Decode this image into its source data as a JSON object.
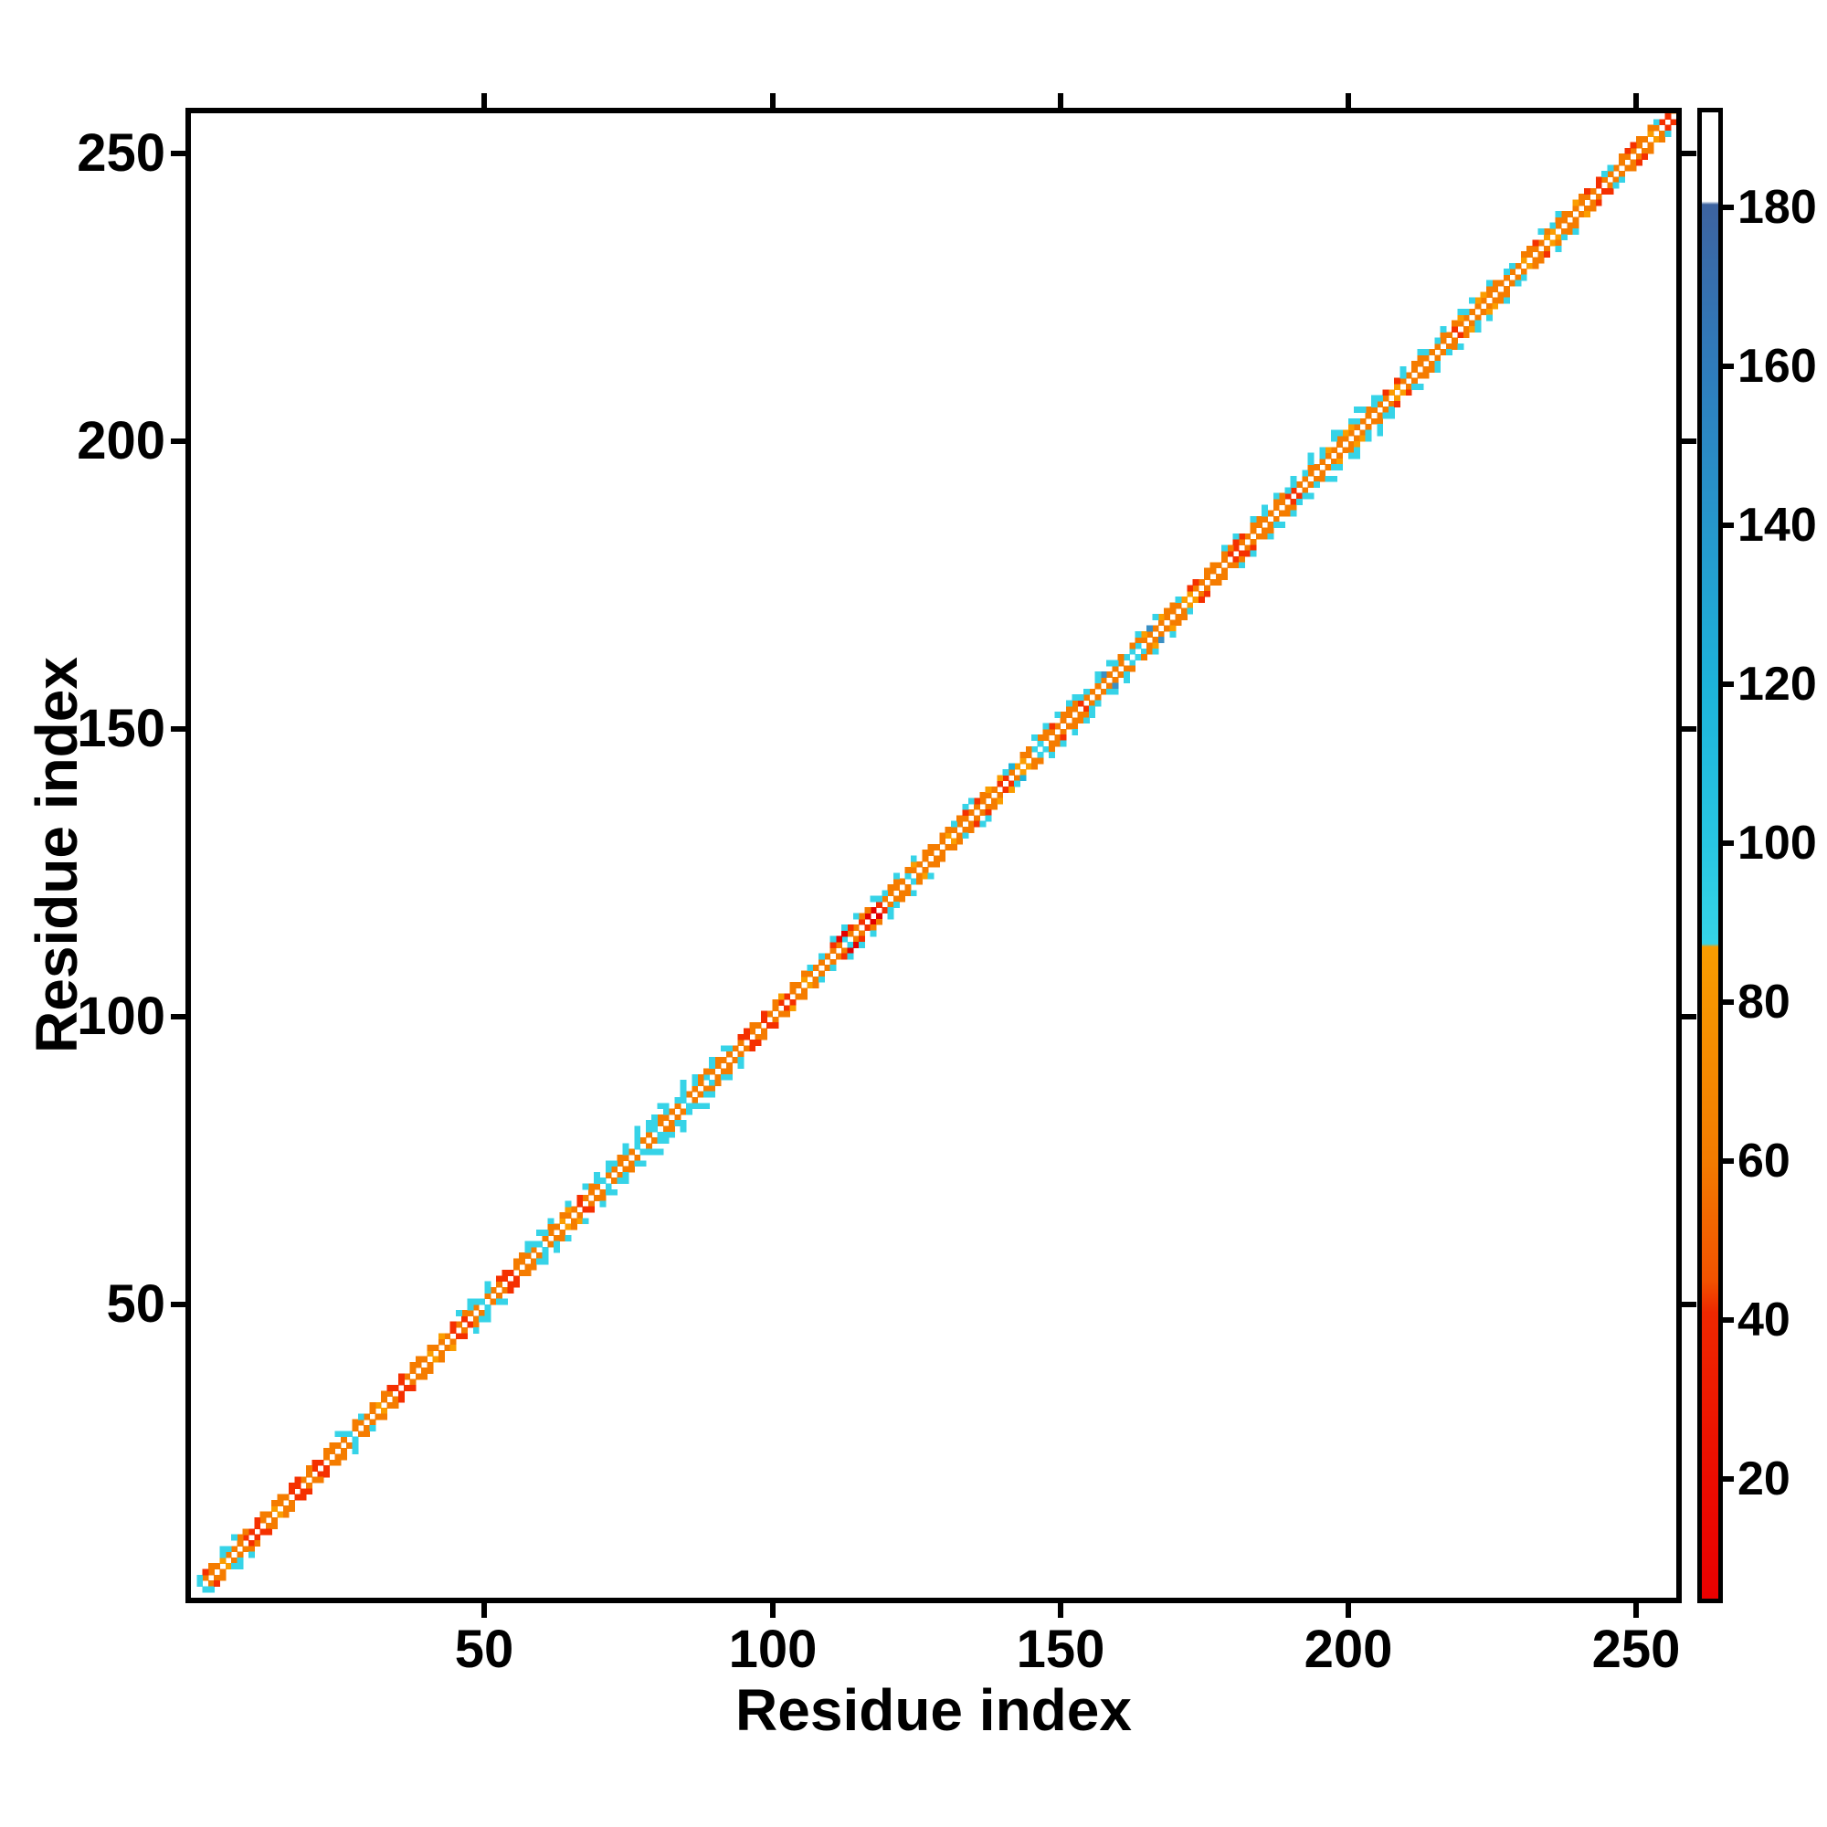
{
  "figure": {
    "background": "#ffffff",
    "axis_color": "#000000"
  },
  "chart_data": {
    "type": "heatmap",
    "title": "",
    "xlabel": "Residue index",
    "ylabel": "Residue index",
    "x_range": [
      0,
      258
    ],
    "y_range": [
      0,
      258
    ],
    "x_ticks": [
      50,
      100,
      150,
      200,
      250
    ],
    "y_ticks": [
      50,
      100,
      150,
      200,
      250
    ],
    "grid": false,
    "n_residues": 256,
    "diagonal": "white (main diagonal i=j is empty)",
    "structure": "sparse contact map: only cells within 1-4 residues of the diagonal are colored, symmetric about the diagonal",
    "palette": {
      "R": "#e30000",
      "r": "#f53000",
      "o": "#f57c00",
      "O": "#fb9d00",
      "c": "#36d3e7",
      "C": "#1db3da",
      "b": "#3b8fc4"
    },
    "value_of_code": {
      "R": 15,
      "r": 32,
      "o": 65,
      "O": 80,
      "c": 100,
      "C": 120,
      "b": 150
    },
    "offsets": {
      "1": "coooOooorrrooOoorroorroooocooooOoorrooooOooororoocooorroooocoooOoorooocooooocoocoooocooocoooooorooroorrooOoooooocoorRRroooocooooooOoooooooorroOOoccoooooorooooooocccoooooooOOoooooorroooooooorrooooooooooooooooOOoooooooooroooooooooooOoooOOooooooorooooooooOorrocoooorrooc",
      "2": "cro.cc.oo.ro.oo.rr.or.oo.c.oc.o.or.r.oo.o.O.r.occ.c.rr.oocc.co.oO.r.oc.ccoc.c.ccoc.cc.cooco.c.rro.r.oO.o.oc.c.rRRr.oo.ccoo.oO.oo.oocor.roO.OcC.oo.oor.ooocc.cb.co.ooOb.Oooc.rr.oo.oorr.ooc.oocc.co.cO.oOOc.occr.rc.ooc.co.oOc.OOoo.cc.oor.ocoo.Oor.rcc.orro.oc",
      "3": "....c.c.................c....................c.c..c......c.c.c..c..c.c.c..c.c.cc.c..c.c..c.c..................c.c.c..c...c..c........cc..........c.c.c.cc...c.c....c..c...........c.c..c.c.c..c..c.c.cc.c.c.c....c..c...c..c.c..c........c..c..",
      "4": "............................................................................c...c...c............................................................................................................c...c...c.................................................."
    },
    "symmetric": true,
    "colorbar": {
      "range": [
        5,
        192
      ],
      "ticks": [
        20,
        40,
        60,
        80,
        100,
        120,
        140,
        160,
        180
      ],
      "tick_labels": [
        "20",
        "40",
        "60",
        "80",
        "100",
        "120",
        "140",
        "160",
        "180"
      ],
      "segments": [
        {
          "v": 192.0,
          "c": "#ffffff"
        },
        {
          "v": 180.8,
          "c": "#ffffff"
        },
        {
          "v": 180.4,
          "c": "#3d63a0"
        },
        {
          "v": 160.0,
          "c": "#2f7cbc"
        },
        {
          "v": 140.0,
          "c": "#2697cc"
        },
        {
          "v": 120.0,
          "c": "#1db3da"
        },
        {
          "v": 100.0,
          "c": "#28c6e2"
        },
        {
          "v": 87.4,
          "c": "#36d4e7"
        },
        {
          "v": 87.0,
          "c": "#f89d00"
        },
        {
          "v": 60.0,
          "c": "#f37b00"
        },
        {
          "v": 45.0,
          "c": "#f15200"
        },
        {
          "v": 41.0,
          "c": "#ee2800"
        },
        {
          "v": 20.0,
          "c": "#ec0c00"
        },
        {
          "v": 5.0,
          "c": "#ea0000"
        }
      ]
    }
  }
}
